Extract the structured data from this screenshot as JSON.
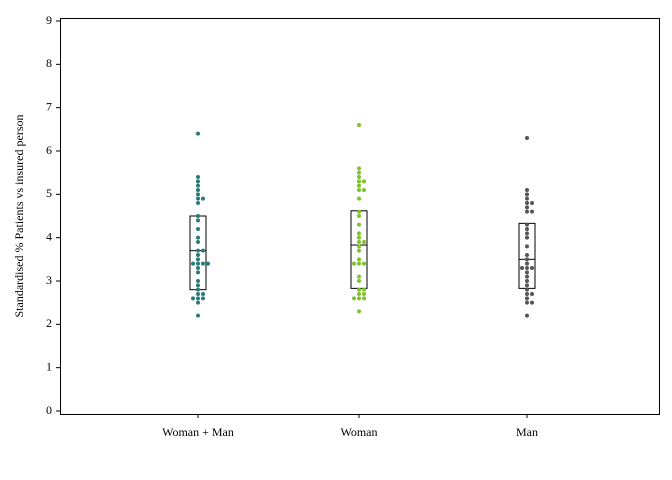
{
  "chart_data": {
    "type": "strip",
    "y_label": "Standardised % Patients vs insured person",
    "categories": [
      "Woman + Man",
      "Woman",
      "Man"
    ],
    "ylim": [
      0,
      9
    ],
    "yticks": [
      0,
      1,
      2,
      3,
      4,
      5,
      6,
      7,
      8,
      9
    ],
    "groups": [
      {
        "color": "#2a7a7a",
        "box": {
          "q1": 2.8,
          "median": 3.7,
          "q3": 4.5
        },
        "values": [
          6.4,
          5.4,
          5.3,
          5.2,
          5.1,
          5.0,
          4.9,
          4.9,
          4.8,
          4.5,
          4.4,
          4.2,
          4.0,
          3.9,
          3.7,
          3.7,
          3.6,
          3.5,
          3.4,
          3.4,
          3.4,
          3.4,
          3.3,
          3.2,
          3.0,
          2.9,
          2.8,
          2.7,
          2.7,
          2.6,
          2.6,
          2.6,
          2.5,
          2.2
        ]
      },
      {
        "color": "#7cc42a",
        "box": {
          "q1": 2.83,
          "median": 3.83,
          "q3": 4.62
        },
        "values": [
          6.6,
          5.6,
          5.5,
          5.4,
          5.3,
          5.3,
          5.2,
          5.1,
          5.1,
          4.9,
          4.6,
          4.5,
          4.3,
          4.1,
          4.0,
          3.9,
          3.9,
          3.8,
          3.7,
          3.5,
          3.4,
          3.4,
          3.4,
          3.1,
          3.0,
          2.8,
          2.8,
          2.7,
          2.7,
          2.6,
          2.6,
          2.6,
          2.3
        ]
      },
      {
        "color": "#555555",
        "box": {
          "q1": 2.83,
          "median": 3.5,
          "q3": 4.33
        },
        "values": [
          6.3,
          5.1,
          5.0,
          4.9,
          4.8,
          4.8,
          4.7,
          4.6,
          4.6,
          4.3,
          4.2,
          4.1,
          4.0,
          3.8,
          3.6,
          3.5,
          3.4,
          3.3,
          3.3,
          3.3,
          3.2,
          3.1,
          3.0,
          2.9,
          2.8,
          2.7,
          2.7,
          2.6,
          2.5,
          2.5,
          2.2
        ]
      }
    ]
  }
}
